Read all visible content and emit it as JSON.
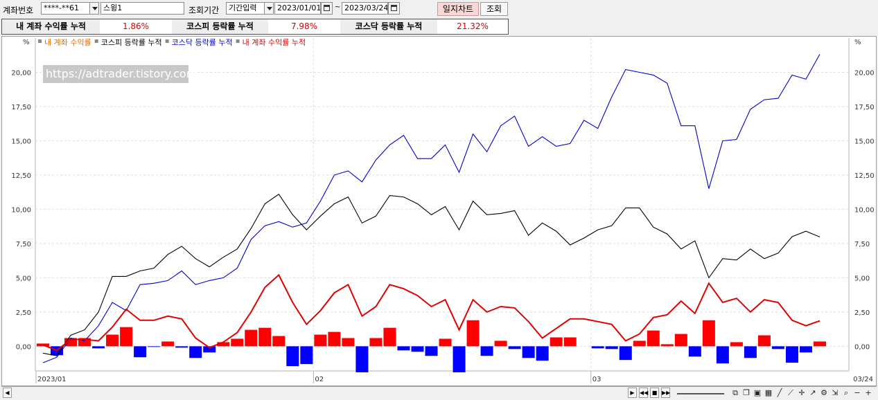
{
  "toolbar": {
    "account_label": "계좌번호",
    "account_value": "****-**61",
    "account_name": "스윙1",
    "period_label": "조회기간",
    "period_mode": "기간입력",
    "date_from": "2023/01/01",
    "date_sep": "~",
    "date_to": "2023/03/24",
    "daily_chart_btn": "일지차트",
    "query_btn": "조회"
  },
  "stats": {
    "my_return_label": "내 계좌 수익률 누적",
    "my_return_value": "1.86%",
    "kospi_label": "코스피 등락률 누적",
    "kospi_value": "7.98%",
    "kosdaq_label": "코스닥 등락률 누적",
    "kosdaq_value": "21.32%"
  },
  "watermark": "https://adtrader.tistory.com",
  "colors": {
    "my_cum": "#e00000",
    "kospi": "#000000",
    "kosdaq": "#0000cc",
    "bar_pos": "#ff0000",
    "bar_neg": "#0000ff",
    "legend_my": "#e07000"
  },
  "chart_data": {
    "type": "line",
    "unit_label": "%",
    "ylim": [
      -1.8,
      22.5
    ],
    "y_ticks": [
      "20,00",
      "17,50",
      "15,00",
      "12,50",
      "10,00",
      "7,50",
      "5,00",
      "2,50",
      "0,00"
    ],
    "y_tick_values": [
      20,
      17.5,
      15,
      12.5,
      10,
      7.5,
      5,
      2.5,
      0
    ],
    "x_labels": [
      {
        "index": 0,
        "label": "2023/01"
      },
      {
        "index": 20,
        "label": "02"
      },
      {
        "index": 40,
        "label": "03"
      },
      {
        "index": 57,
        "label": "03/24"
      }
    ],
    "grid": true,
    "legend": [
      {
        "name": "내 계좌 수익률",
        "color": "#e07000",
        "marker": "#888888"
      },
      {
        "name": "코스피 등락률 누적",
        "color": "#000000",
        "marker": "#888888"
      },
      {
        "name": "코스닥 등락률 누적",
        "color": "#0000cc",
        "marker": "#888888"
      },
      {
        "name": "내 계좌 수익률 누적",
        "color": "#e00000",
        "marker": "#888888"
      }
    ],
    "daily_returns": [
      0.2,
      -0.65,
      0.6,
      0.6,
      -0.15,
      0.85,
      1.4,
      -0.8,
      -0.05,
      0.35,
      -0.1,
      -0.85,
      -0.45,
      0.3,
      0.55,
      1.2,
      1.35,
      0.75,
      -1.45,
      -1.3,
      0.85,
      1.05,
      0.6,
      -1.9,
      0.6,
      1.35,
      -0.3,
      -0.4,
      -0.7,
      0.55,
      -1.9,
      1.9,
      -0.7,
      0.4,
      -0.2,
      -0.85,
      -1.05,
      0.65,
      0.65,
      0.0,
      -0.15,
      -0.2,
      -1.0,
      0.4,
      1.15,
      0.15,
      0.9,
      -0.75,
      1.9,
      -1.25,
      0.3,
      -0.85,
      0.8,
      -0.2,
      -1.2,
      -0.45,
      0.35
    ],
    "series": [
      {
        "name": "코스피 등락률 누적",
        "values": [
          -0.5,
          -0.7,
          0.8,
          1.2,
          2.5,
          5.1,
          5.1,
          5.5,
          5.7,
          6.7,
          7.3,
          6.4,
          5.8,
          6.5,
          7.1,
          8.6,
          10.4,
          11.1,
          9.6,
          8.5,
          9.5,
          10.4,
          10.9,
          9.0,
          9.5,
          11.0,
          10.9,
          10.4,
          9.6,
          10.2,
          8.5,
          10.6,
          9.6,
          9.7,
          9.9,
          8.1,
          9.0,
          8.4,
          7.4,
          7.9,
          8.5,
          8.8,
          10.1,
          10.1,
          8.7,
          8.2,
          7.1,
          7.7,
          5.0,
          6.4,
          6.3,
          7.1,
          6.4,
          6.8,
          8.0,
          8.4,
          7.98
        ]
      },
      {
        "name": "코스닥 등락률 누적",
        "values": [
          -1.2,
          -0.8,
          0.6,
          0.4,
          1.5,
          3.2,
          2.6,
          4.5,
          4.6,
          4.8,
          5.5,
          4.5,
          4.8,
          5.0,
          5.7,
          7.8,
          8.8,
          9.1,
          8.7,
          9.0,
          10.6,
          12.5,
          12.8,
          12.0,
          13.6,
          14.7,
          15.4,
          13.7,
          13.7,
          14.7,
          12.7,
          15.5,
          14.2,
          16.1,
          16.8,
          14.6,
          15.3,
          14.6,
          14.8,
          16.5,
          15.9,
          18.2,
          20.2,
          20.0,
          19.8,
          19.2,
          16.1,
          16.1,
          11.5,
          15.0,
          15.1,
          17.3,
          18.0,
          18.1,
          19.8,
          19.5,
          21.32
        ]
      },
      {
        "name": "내 계좌 수익률 누적",
        "values": [
          0.1,
          -0.3,
          0.5,
          0.5,
          0.4,
          1.4,
          2.7,
          1.9,
          1.9,
          2.2,
          2.0,
          0.6,
          -0.1,
          0.3,
          1.0,
          2.5,
          4.3,
          5.2,
          3.2,
          1.6,
          2.6,
          3.9,
          4.5,
          2.2,
          2.9,
          4.5,
          4.2,
          3.7,
          2.9,
          3.4,
          1.2,
          3.4,
          2.5,
          2.9,
          2.8,
          1.8,
          0.6,
          1.3,
          2.0,
          2.0,
          1.8,
          1.6,
          0.4,
          0.9,
          2.1,
          2.3,
          3.3,
          2.4,
          4.6,
          3.2,
          3.5,
          2.5,
          3.4,
          3.2,
          1.9,
          1.5,
          1.86
        ]
      }
    ]
  }
}
